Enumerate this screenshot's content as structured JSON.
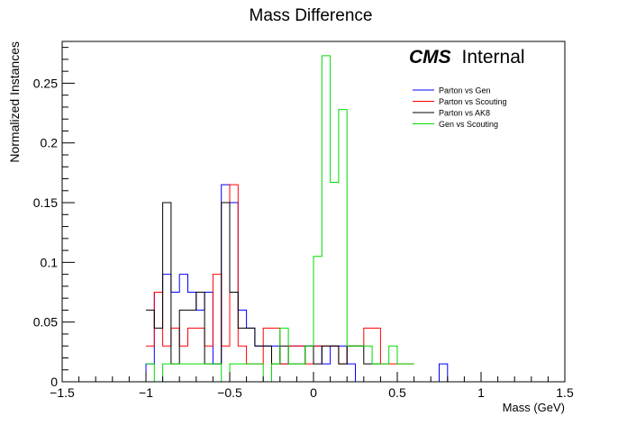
{
  "chart_data": {
    "type": "step-histogram",
    "title": "Mass Difference",
    "xlabel": "Mass (GeV)",
    "ylabel": "Normalized Instances",
    "xlim": [
      -1.5,
      1.5
    ],
    "ylim": [
      0,
      0.285
    ],
    "bin_width": 0.05,
    "x_ticks": [
      {
        "value": -1.5,
        "label": "−1.5"
      },
      {
        "value": -1,
        "label": "−1"
      },
      {
        "value": -0.5,
        "label": "−0.5"
      },
      {
        "value": 0,
        "label": "0"
      },
      {
        "value": 0.5,
        "label": "0.5"
      },
      {
        "value": 1,
        "label": "1"
      },
      {
        "value": 1.5,
        "label": "1.5"
      }
    ],
    "y_ticks": [
      {
        "value": 0,
        "label": "0"
      },
      {
        "value": 0.05,
        "label": "0.05"
      },
      {
        "value": 0.1,
        "label": "0.1"
      },
      {
        "value": 0.15,
        "label": "0.15"
      },
      {
        "value": 0.2,
        "label": "0.2"
      },
      {
        "value": 0.25,
        "label": "0.25"
      }
    ],
    "annotation": {
      "bold": "CMS",
      "normal": "Internal"
    },
    "legend_position": "top-right",
    "series": [
      {
        "name": "Parton vs Gen",
        "color": "#0000ff",
        "bins": [
          [
            -1.4,
            -1.35,
            0
          ],
          [
            -1.35,
            -1.3,
            0
          ],
          [
            -1.3,
            -1.25,
            0
          ],
          [
            -1.25,
            -1.2,
            0
          ],
          [
            -1.2,
            -1.15,
            0
          ],
          [
            -1.15,
            -1.1,
            0
          ],
          [
            -1.1,
            -1.05,
            0
          ],
          [
            -1.05,
            -1.0,
            0
          ],
          [
            -1.0,
            -0.95,
            0.015
          ],
          [
            -0.95,
            -0.9,
            0.075
          ],
          [
            -0.9,
            -0.85,
            0.09
          ],
          [
            -0.85,
            -0.8,
            0.075
          ],
          [
            -0.8,
            -0.75,
            0.09
          ],
          [
            -0.75,
            -0.7,
            0.075
          ],
          [
            -0.7,
            -0.65,
            0.06
          ],
          [
            -0.65,
            -0.6,
            0.075
          ],
          [
            -0.6,
            -0.55,
            0.015
          ],
          [
            -0.55,
            -0.5,
            0.165
          ],
          [
            -0.5,
            -0.45,
            0.15
          ],
          [
            -0.45,
            -0.4,
            0.06
          ],
          [
            -0.4,
            -0.35,
            0.045
          ],
          [
            -0.35,
            -0.3,
            0.03
          ],
          [
            -0.3,
            -0.25,
            0.03
          ],
          [
            -0.25,
            -0.2,
            0.03
          ],
          [
            -0.2,
            -0.15,
            0.015
          ],
          [
            -0.15,
            -0.1,
            0.03
          ],
          [
            -0.1,
            -0.05,
            0.03
          ],
          [
            -0.05,
            0.0,
            0.03
          ],
          [
            0.0,
            0.05,
            0.03
          ],
          [
            0.05,
            0.1,
            0.015
          ],
          [
            0.1,
            0.15,
            0.03
          ],
          [
            0.15,
            0.2,
            0.03
          ],
          [
            0.2,
            0.25,
            0.015
          ],
          [
            0.25,
            0.3,
            0
          ],
          [
            0.3,
            0.35,
            0
          ],
          [
            0.35,
            0.4,
            0
          ],
          [
            0.4,
            0.45,
            0
          ],
          [
            0.45,
            0.5,
            0
          ],
          [
            0.5,
            0.55,
            0
          ],
          [
            0.55,
            0.6,
            0
          ],
          [
            0.6,
            0.65,
            0
          ],
          [
            0.65,
            0.7,
            0
          ],
          [
            0.7,
            0.75,
            0
          ],
          [
            0.75,
            0.8,
            0.015
          ],
          [
            0.8,
            0.85,
            0
          ],
          [
            0.85,
            0.9,
            0
          ],
          [
            0.9,
            0.95,
            0
          ],
          [
            0.95,
            1.0,
            0
          ],
          [
            1.0,
            1.05,
            0
          ],
          [
            1.05,
            1.1,
            0
          ],
          [
            1.1,
            1.15,
            0
          ],
          [
            1.15,
            1.2,
            0
          ],
          [
            1.2,
            1.25,
            0
          ],
          [
            1.25,
            1.3,
            0
          ],
          [
            1.3,
            1.35,
            0
          ],
          [
            1.35,
            1.4,
            0
          ]
        ]
      },
      {
        "name": "Parton vs Scouting",
        "color": "#ff0000",
        "bins": [
          [
            -1.0,
            -0.95,
            0.03
          ],
          [
            -0.95,
            -0.9,
            0.075
          ],
          [
            -0.9,
            -0.85,
            0.03
          ],
          [
            -0.85,
            -0.8,
            0.045
          ],
          [
            -0.8,
            -0.75,
            0.03
          ],
          [
            -0.75,
            -0.7,
            0.045
          ],
          [
            -0.7,
            -0.65,
            0.045
          ],
          [
            -0.65,
            -0.6,
            0.03
          ],
          [
            -0.6,
            -0.55,
            0.09
          ],
          [
            -0.55,
            -0.5,
            0.03
          ],
          [
            -0.5,
            -0.45,
            0.165
          ],
          [
            -0.45,
            -0.4,
            0.03
          ],
          [
            -0.4,
            -0.35,
            0.015
          ],
          [
            -0.35,
            -0.3,
            0.015
          ],
          [
            -0.3,
            -0.25,
            0.045
          ],
          [
            -0.25,
            -0.2,
            0.045
          ],
          [
            -0.2,
            -0.15,
            0.015
          ],
          [
            -0.15,
            -0.1,
            0.03
          ],
          [
            -0.1,
            -0.05,
            0.03
          ],
          [
            -0.05,
            0.0,
            0.015
          ],
          [
            0.0,
            0.05,
            0.03
          ],
          [
            0.05,
            0.1,
            0.03
          ],
          [
            0.1,
            0.15,
            0.03
          ],
          [
            0.15,
            0.2,
            0.015
          ],
          [
            0.2,
            0.25,
            0.03
          ],
          [
            0.25,
            0.3,
            0.03
          ],
          [
            0.3,
            0.35,
            0.045
          ],
          [
            0.35,
            0.4,
            0.045
          ],
          [
            0.4,
            0.45,
            0.015
          ],
          [
            0.45,
            0.5,
            0.015
          ],
          [
            0.5,
            0.55,
            0.015
          ],
          [
            0.55,
            0.6,
            0.015
          ]
        ]
      },
      {
        "name": "Parton vs AK8",
        "color": "#000000",
        "bins": [
          [
            -1.0,
            -0.95,
            0.06
          ],
          [
            -0.95,
            -0.9,
            0.045
          ],
          [
            -0.9,
            -0.85,
            0.15
          ],
          [
            -0.85,
            -0.8,
            0.015
          ],
          [
            -0.8,
            -0.75,
            0.06
          ],
          [
            -0.75,
            -0.7,
            0.06
          ],
          [
            -0.7,
            -0.65,
            0.075
          ],
          [
            -0.65,
            -0.6,
            0.015
          ],
          [
            -0.6,
            -0.55,
            0.015
          ],
          [
            -0.55,
            -0.5,
            0.15
          ],
          [
            -0.5,
            -0.45,
            0.075
          ],
          [
            -0.45,
            -0.4,
            0.045
          ],
          [
            -0.4,
            -0.35,
            0.045
          ],
          [
            -0.35,
            -0.3,
            0.03
          ],
          [
            -0.3,
            -0.25,
            0.03
          ],
          [
            -0.25,
            -0.2,
            0.015
          ],
          [
            -0.2,
            -0.15,
            0.03
          ],
          [
            -0.15,
            -0.1,
            0.015
          ],
          [
            -0.1,
            -0.05,
            0.015
          ],
          [
            -0.05,
            0.0,
            0.03
          ],
          [
            0.0,
            0.05,
            0.015
          ],
          [
            0.05,
            0.1,
            0.03
          ],
          [
            0.1,
            0.15,
            0.03
          ],
          [
            0.15,
            0.2,
            0.015
          ],
          [
            0.2,
            0.25,
            0.03
          ],
          [
            0.25,
            0.3,
            0.03
          ],
          [
            0.3,
            0.35,
            0.015
          ],
          [
            0.35,
            0.4,
            0.015
          ]
        ]
      },
      {
        "name": "Gen vs Scouting",
        "color": "#00dd00",
        "bins": [
          [
            -1.0,
            -0.95,
            0.015
          ],
          [
            -0.95,
            -0.9,
            0
          ],
          [
            -0.9,
            -0.85,
            0.015
          ],
          [
            -0.85,
            -0.8,
            0.015
          ],
          [
            -0.8,
            -0.75,
            0.015
          ],
          [
            -0.75,
            -0.7,
            0.015
          ],
          [
            -0.7,
            -0.65,
            0.015
          ],
          [
            -0.65,
            -0.6,
            0.015
          ],
          [
            -0.6,
            -0.55,
            0.015
          ],
          [
            -0.55,
            -0.5,
            0
          ],
          [
            -0.5,
            -0.45,
            0.015
          ],
          [
            -0.45,
            -0.4,
            0.015
          ],
          [
            -0.4,
            -0.35,
            0.015
          ],
          [
            -0.35,
            -0.3,
            0.015
          ],
          [
            -0.3,
            -0.25,
            0
          ],
          [
            -0.25,
            -0.2,
            0.015
          ],
          [
            -0.2,
            -0.15,
            0.045
          ],
          [
            -0.15,
            -0.1,
            0.015
          ],
          [
            -0.1,
            -0.05,
            0.015
          ],
          [
            -0.05,
            0.0,
            0.03
          ],
          [
            0.0,
            0.05,
            0.105
          ],
          [
            0.05,
            0.1,
            0.273
          ],
          [
            0.1,
            0.15,
            0.167
          ],
          [
            0.15,
            0.2,
            0.228
          ],
          [
            0.2,
            0.25,
            0.03
          ],
          [
            0.25,
            0.3,
            0.03
          ],
          [
            0.3,
            0.35,
            0.03
          ],
          [
            0.35,
            0.4,
            0.015
          ],
          [
            0.4,
            0.45,
            0.015
          ],
          [
            0.45,
            0.5,
            0.03
          ],
          [
            0.5,
            0.55,
            0.015
          ],
          [
            0.55,
            0.6,
            0.015
          ]
        ]
      }
    ]
  }
}
